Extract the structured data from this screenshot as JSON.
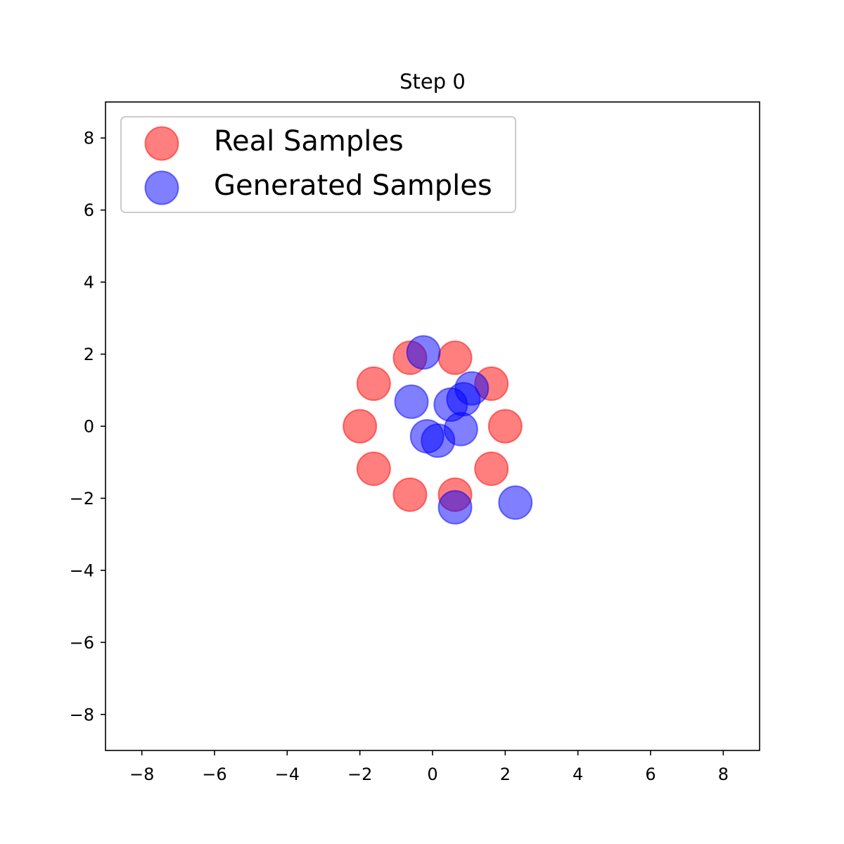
{
  "chart_data": {
    "type": "scatter",
    "title": "Step 0",
    "xlabel": "",
    "ylabel": "",
    "xlim": [
      -9,
      9
    ],
    "ylim": [
      -9,
      9
    ],
    "xticks": [
      -8,
      -6,
      -4,
      -2,
      0,
      2,
      4,
      6,
      8
    ],
    "yticks": [
      -8,
      -6,
      -4,
      -2,
      0,
      2,
      4,
      6,
      8
    ],
    "xtick_labels": [
      "−8",
      "−6",
      "−4",
      "−2",
      "0",
      "2",
      "4",
      "6",
      "8"
    ],
    "ytick_labels": [
      "−8",
      "−6",
      "−4",
      "−2",
      "0",
      "2",
      "4",
      "6",
      "8"
    ],
    "grid": false,
    "legend_position": "top-left",
    "series": [
      {
        "name": "Real Samples",
        "color": "#ff0000",
        "alpha": 0.5,
        "points": [
          [
            2.0,
            0.0
          ],
          [
            1.62,
            1.18
          ],
          [
            0.62,
            1.9
          ],
          [
            -0.62,
            1.9
          ],
          [
            -1.62,
            1.18
          ],
          [
            -2.0,
            0.0
          ],
          [
            -1.62,
            -1.18
          ],
          [
            -0.62,
            -1.9
          ],
          [
            0.62,
            -1.9
          ],
          [
            1.62,
            -1.18
          ]
        ]
      },
      {
        "name": "Generated Samples",
        "color": "#0000ff",
        "alpha": 0.5,
        "points": [
          [
            -0.25,
            2.05
          ],
          [
            -0.58,
            0.68
          ],
          [
            0.5,
            0.6
          ],
          [
            0.85,
            0.75
          ],
          [
            1.08,
            1.05
          ],
          [
            0.78,
            -0.08
          ],
          [
            -0.15,
            -0.28
          ],
          [
            0.15,
            -0.4
          ],
          [
            0.62,
            -2.25
          ],
          [
            2.28,
            -2.12
          ]
        ]
      }
    ]
  }
}
